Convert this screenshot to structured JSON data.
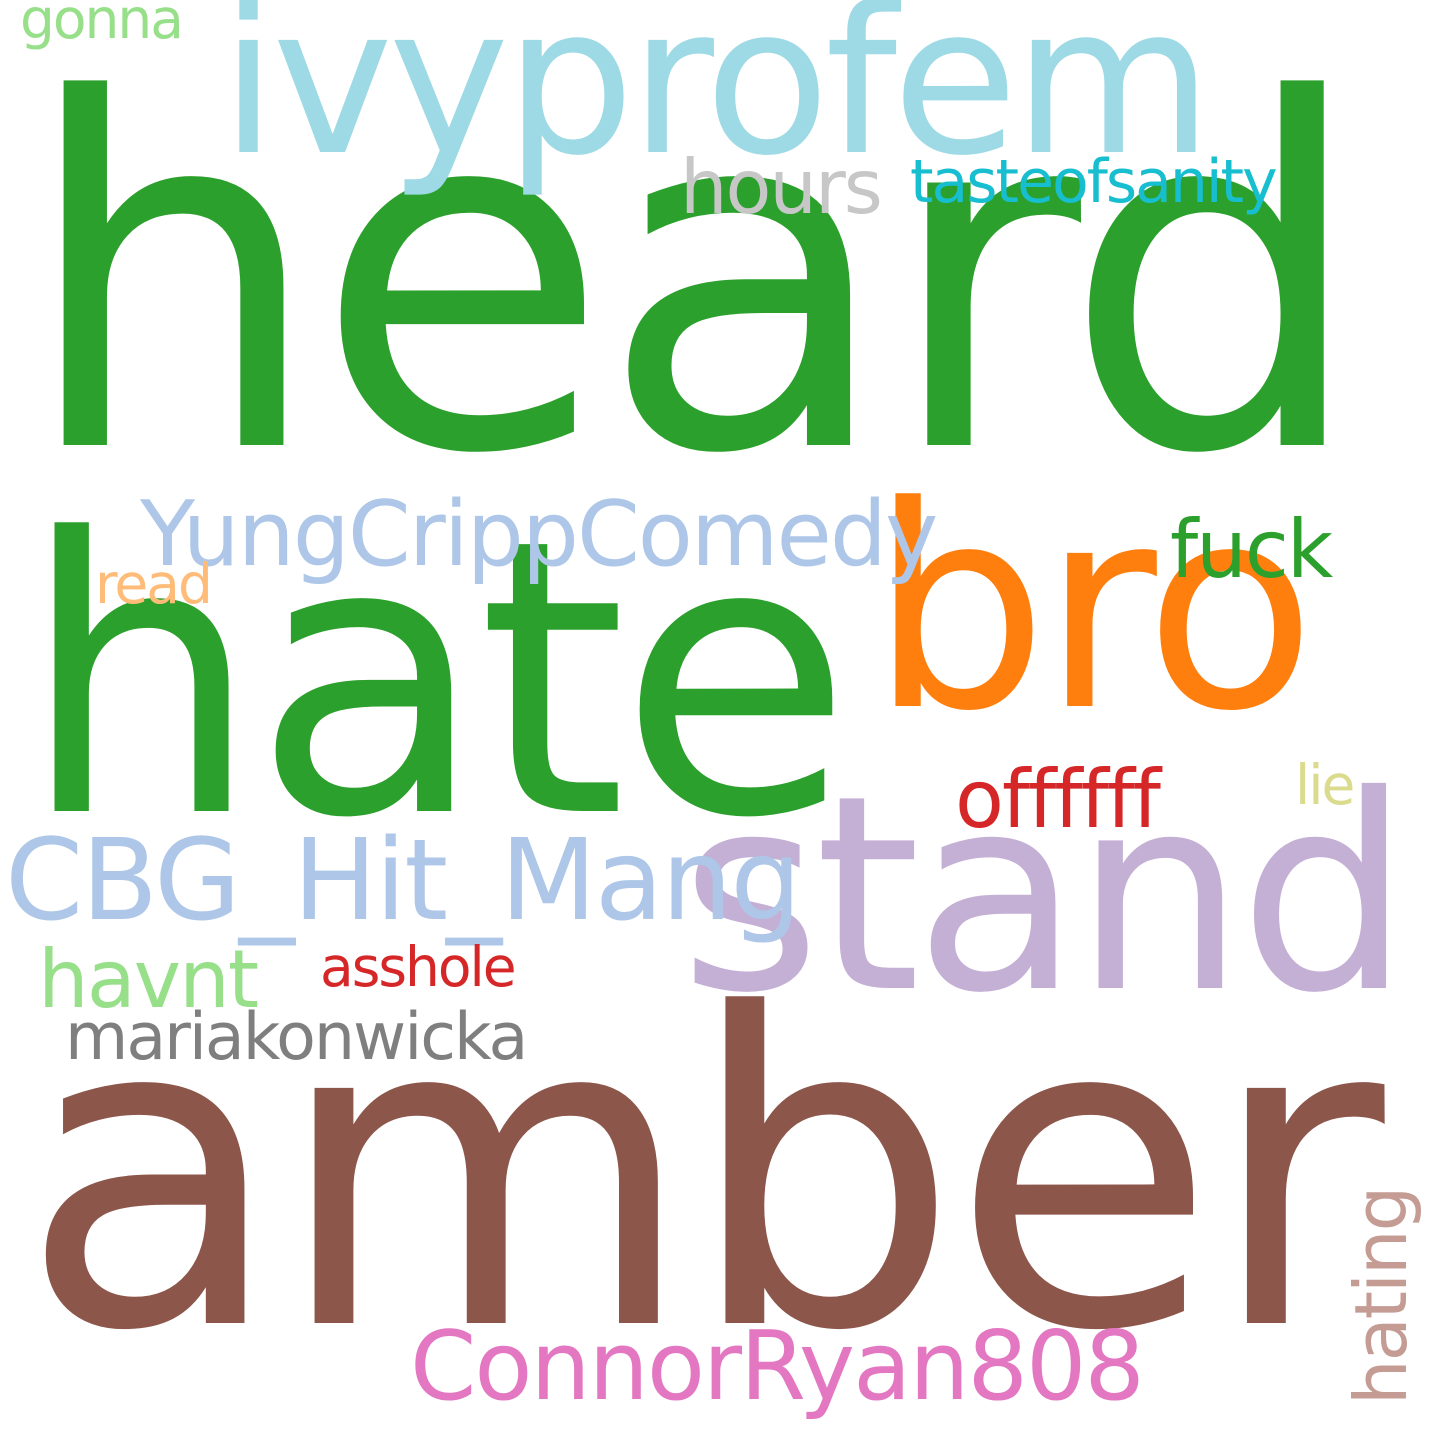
{
  "words": [
    {
      "text": "heard",
      "color": "#2ca02c"
    },
    {
      "text": "amber",
      "color": "#8c564b"
    },
    {
      "text": "hate",
      "color": "#2ca02c"
    },
    {
      "text": "stand",
      "color": "#c5b0d5"
    },
    {
      "text": "bro",
      "color": "#ff7f0e"
    },
    {
      "text": "ivyprofem",
      "color": "#9edae5"
    },
    {
      "text": "YungCrippComedy",
      "color": "#aec7e8"
    },
    {
      "text": "CBG_Hit_Mang",
      "color": "#aec7e8"
    },
    {
      "text": "ConnorRyan808",
      "color": "#e377c2"
    },
    {
      "text": "tasteofsanity",
      "color": "#17becf"
    },
    {
      "text": "hours",
      "color": "#c7c7c7"
    },
    {
      "text": "fuck",
      "color": "#2ca02c"
    },
    {
      "text": "offffff",
      "color": "#d62728"
    },
    {
      "text": "mariakonwicka",
      "color": "#7f7f7f"
    },
    {
      "text": "asshole",
      "color": "#d62728"
    },
    {
      "text": "havnt",
      "color": "#98df8a"
    },
    {
      "text": "read",
      "color": "#ffbb78"
    },
    {
      "text": "gonna",
      "color": "#98df8a"
    },
    {
      "text": "lie",
      "color": "#dbdb8d"
    },
    {
      "text": "hating",
      "color": "#c49c94"
    }
  ]
}
